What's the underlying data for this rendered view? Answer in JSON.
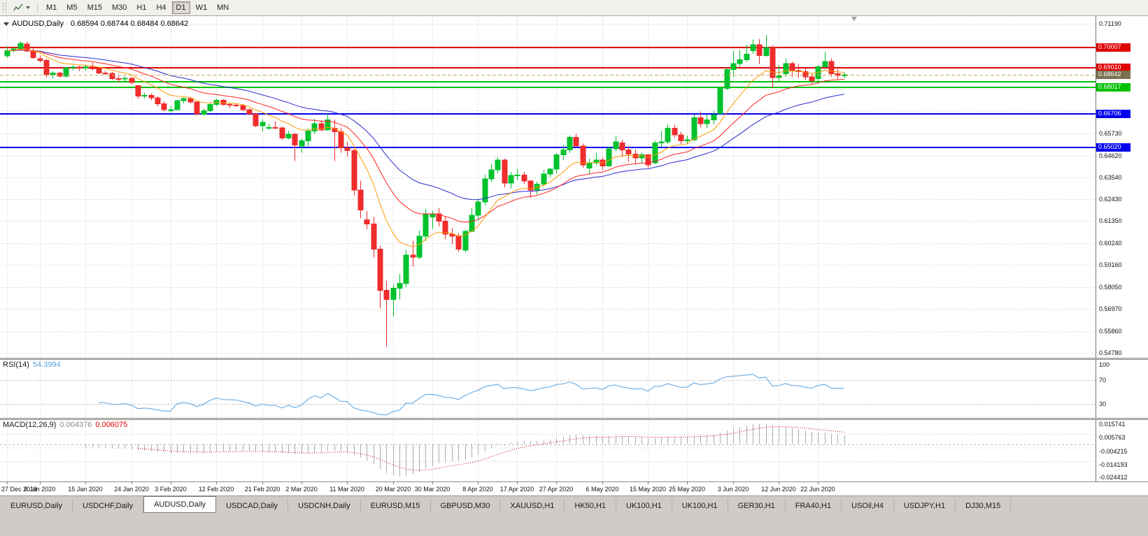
{
  "toolbar": {
    "periods": [
      "M1",
      "M5",
      "M15",
      "M30",
      "H1",
      "H4",
      "D1",
      "W1",
      "MN"
    ],
    "active_period": "D1"
  },
  "chart": {
    "type": "candlestick",
    "title": "AUDUSD,Daily",
    "ohlc_label": "0.68594 0.68744 0.68484 0.68642",
    "up_color": "#00c22c",
    "down_color": "#ef2c2c",
    "price_axis": {
      "max": 0.7119,
      "min": 0.5478,
      "grid_prices": [
        0.7119,
        0.7011,
        0.6903,
        0.6795,
        0.6687,
        0.6573,
        0.6462,
        0.6354,
        0.6243,
        0.6135,
        0.6024,
        0.5916,
        0.5805,
        0.5697,
        0.5586,
        0.5478
      ],
      "tick_labels": [
        {
          "price": 0.7119,
          "text": "0.71190"
        },
        {
          "price": 0.6573,
          "text": "0.65730"
        },
        {
          "price": 0.6462,
          "text": "0.64620"
        },
        {
          "price": 0.6354,
          "text": "0.63540"
        },
        {
          "price": 0.6243,
          "text": "0.62430"
        },
        {
          "price": 0.6135,
          "text": "0.61350"
        },
        {
          "price": 0.6024,
          "text": "0.60240"
        },
        {
          "price": 0.5916,
          "text": "0.59160"
        },
        {
          "price": 0.5805,
          "text": "0.58050"
        },
        {
          "price": 0.5697,
          "text": "0.56970"
        },
        {
          "price": 0.5586,
          "text": "0.55860"
        },
        {
          "price": 0.5478,
          "text": "0.54780"
        }
      ]
    },
    "hlines": [
      {
        "price": 0.70007,
        "text": "0.70007",
        "color": "#e00000",
        "badge": true
      },
      {
        "price": 0.6901,
        "text": "0.69010",
        "color": "#e00000",
        "badge": true
      },
      {
        "price": 0.683,
        "text": "0.68300",
        "color": "#00c000",
        "badge": false
      },
      {
        "price": 0.68017,
        "text": "0.68017",
        "color": "#00c000",
        "badge": true
      },
      {
        "price": 0.66706,
        "text": "0.66706",
        "color": "#0000ee",
        "badge": true
      },
      {
        "price": 0.6502,
        "text": "0.65020",
        "color": "#0000ee",
        "badge": true
      }
    ],
    "current_price": {
      "price": 0.68642,
      "text": "0.68642",
      "line_color": "#c9ab63",
      "badge_color": "#7a7050"
    },
    "ma": [
      {
        "name": "ma-fast",
        "period": 10,
        "color": "#ff9900"
      },
      {
        "name": "ma-mid",
        "period": 20,
        "color": "#ff2222"
      },
      {
        "name": "ma-slow",
        "period": 34,
        "color": "#2929cf"
      }
    ],
    "candles": [
      [
        0.6958,
        0.7005,
        0.695,
        0.6985
      ],
      [
        0.6985,
        0.7002,
        0.6976,
        0.6993
      ],
      [
        0.6993,
        0.7032,
        0.6988,
        0.7021
      ],
      [
        0.7018,
        0.7031,
        0.6978,
        0.6983
      ],
      [
        0.6983,
        0.7,
        0.6945,
        0.695
      ],
      [
        0.6945,
        0.6962,
        0.6925,
        0.6936
      ],
      [
        0.6936,
        0.6944,
        0.685,
        0.6865
      ],
      [
        0.6865,
        0.6882,
        0.6848,
        0.6873
      ],
      [
        0.6873,
        0.6879,
        0.6852,
        0.6858
      ],
      [
        0.6858,
        0.6905,
        0.685,
        0.69
      ],
      [
        0.69,
        0.6912,
        0.6888,
        0.6903
      ],
      [
        0.6903,
        0.691,
        0.6883,
        0.6897
      ],
      [
        0.6897,
        0.6913,
        0.6886,
        0.6905
      ],
      [
        0.6905,
        0.6925,
        0.6888,
        0.6895
      ],
      [
        0.6895,
        0.6901,
        0.6868,
        0.6874
      ],
      [
        0.6874,
        0.6884,
        0.6863,
        0.6872
      ],
      [
        0.6872,
        0.6878,
        0.6838,
        0.6845
      ],
      [
        0.6845,
        0.6858,
        0.6826,
        0.6843
      ],
      [
        0.6843,
        0.6856,
        0.6832,
        0.6848
      ],
      [
        0.6848,
        0.6853,
        0.6818,
        0.6827
      ],
      [
        0.681,
        0.6813,
        0.6745,
        0.6758
      ],
      [
        0.6758,
        0.6775,
        0.6748,
        0.6762
      ],
      [
        0.6762,
        0.677,
        0.6738,
        0.675
      ],
      [
        0.675,
        0.6757,
        0.6708,
        0.672
      ],
      [
        0.672,
        0.6733,
        0.6682,
        0.6691
      ],
      [
        0.6685,
        0.6708,
        0.6677,
        0.669
      ],
      [
        0.669,
        0.674,
        0.6688,
        0.6735
      ],
      [
        0.6735,
        0.6751,
        0.6722,
        0.6746
      ],
      [
        0.6746,
        0.6753,
        0.672,
        0.6728
      ],
      [
        0.6728,
        0.6732,
        0.6662,
        0.667
      ],
      [
        0.6668,
        0.6696,
        0.666,
        0.6686
      ],
      [
        0.6686,
        0.6723,
        0.668,
        0.6716
      ],
      [
        0.6716,
        0.6746,
        0.671,
        0.6738
      ],
      [
        0.6738,
        0.6743,
        0.6712,
        0.6716
      ],
      [
        0.6716,
        0.6725,
        0.67,
        0.6713
      ],
      [
        0.6713,
        0.6722,
        0.6704,
        0.6711
      ],
      [
        0.6711,
        0.6718,
        0.6684,
        0.669
      ],
      [
        0.669,
        0.6697,
        0.6662,
        0.667
      ],
      [
        0.667,
        0.6675,
        0.6604,
        0.6611
      ],
      [
        0.6611,
        0.6641,
        0.6585,
        0.6627
      ],
      [
        0.66,
        0.6621,
        0.6591,
        0.6601
      ],
      [
        0.6601,
        0.6633,
        0.6594,
        0.66
      ],
      [
        0.66,
        0.6606,
        0.6541,
        0.6549
      ],
      [
        0.6549,
        0.6586,
        0.6542,
        0.6568
      ],
      [
        0.6568,
        0.6573,
        0.6434,
        0.6515
      ],
      [
        0.651,
        0.6546,
        0.6476,
        0.6535
      ],
      [
        0.6535,
        0.6596,
        0.651,
        0.6585
      ],
      [
        0.6585,
        0.6646,
        0.657,
        0.6621
      ],
      [
        0.6621,
        0.6638,
        0.6584,
        0.659
      ],
      [
        0.659,
        0.6671,
        0.6586,
        0.664
      ],
      [
        0.6598,
        0.6641,
        0.6434,
        0.6581
      ],
      [
        0.6581,
        0.6601,
        0.6476,
        0.65
      ],
      [
        0.65,
        0.6529,
        0.6457,
        0.6487
      ],
      [
        0.6487,
        0.6496,
        0.6264,
        0.629
      ],
      [
        0.629,
        0.6336,
        0.6148,
        0.619
      ],
      [
        0.6142,
        0.6186,
        0.6094,
        0.612
      ],
      [
        0.612,
        0.6156,
        0.5954,
        0.5995
      ],
      [
        0.5995,
        0.6012,
        0.5702,
        0.579
      ],
      [
        0.579,
        0.5836,
        0.551,
        0.5745
      ],
      [
        0.5745,
        0.5822,
        0.566,
        0.58
      ],
      [
        0.58,
        0.5872,
        0.5744,
        0.5825
      ],
      [
        0.5825,
        0.5992,
        0.5806,
        0.5965
      ],
      [
        0.5965,
        0.6037,
        0.5909,
        0.5955
      ],
      [
        0.5955,
        0.6087,
        0.5944,
        0.606
      ],
      [
        0.606,
        0.6196,
        0.6036,
        0.617
      ],
      [
        0.6155,
        0.6187,
        0.6096,
        0.6172
      ],
      [
        0.6172,
        0.6201,
        0.6109,
        0.6135
      ],
      [
        0.6135,
        0.6156,
        0.6044,
        0.607
      ],
      [
        0.607,
        0.6101,
        0.6019,
        0.606
      ],
      [
        0.606,
        0.6076,
        0.5981,
        0.5995
      ],
      [
        0.599,
        0.6092,
        0.5979,
        0.6085
      ],
      [
        0.6085,
        0.6201,
        0.608,
        0.6165
      ],
      [
        0.6165,
        0.6246,
        0.6139,
        0.623
      ],
      [
        0.623,
        0.6366,
        0.6214,
        0.6345
      ],
      [
        0.6345,
        0.6421,
        0.6329,
        0.639
      ],
      [
        0.639,
        0.6456,
        0.6374,
        0.644
      ],
      [
        0.644,
        0.6446,
        0.6304,
        0.6325
      ],
      [
        0.6325,
        0.6381,
        0.6299,
        0.6363
      ],
      [
        0.6363,
        0.6396,
        0.6339,
        0.6365
      ],
      [
        0.6365,
        0.6381,
        0.6319,
        0.6335
      ],
      [
        0.6335,
        0.6341,
        0.6252,
        0.629
      ],
      [
        0.629,
        0.6331,
        0.6267,
        0.632
      ],
      [
        0.632,
        0.6391,
        0.6309,
        0.637
      ],
      [
        0.637,
        0.6401,
        0.6354,
        0.6395
      ],
      [
        0.6395,
        0.6473,
        0.6371,
        0.6465
      ],
      [
        0.6465,
        0.6516,
        0.6439,
        0.649
      ],
      [
        0.649,
        0.6561,
        0.6474,
        0.6552
      ],
      [
        0.6552,
        0.6571,
        0.6504,
        0.651
      ],
      [
        0.651,
        0.6521,
        0.6402,
        0.6415
      ],
      [
        0.64,
        0.6446,
        0.6371,
        0.6425
      ],
      [
        0.6425,
        0.6476,
        0.6414,
        0.644
      ],
      [
        0.644,
        0.6451,
        0.6389,
        0.641
      ],
      [
        0.641,
        0.6506,
        0.6404,
        0.6495
      ],
      [
        0.6495,
        0.6561,
        0.6484,
        0.653
      ],
      [
        0.6525,
        0.6541,
        0.6454,
        0.649
      ],
      [
        0.649,
        0.6511,
        0.6431,
        0.647
      ],
      [
        0.647,
        0.6491,
        0.6419,
        0.645
      ],
      [
        0.645,
        0.6476,
        0.6424,
        0.6465
      ],
      [
        0.6465,
        0.6469,
        0.6401,
        0.6415
      ],
      [
        0.6425,
        0.6536,
        0.6419,
        0.6525
      ],
      [
        0.6525,
        0.6586,
        0.6504,
        0.653
      ],
      [
        0.653,
        0.6618,
        0.6519,
        0.6598
      ],
      [
        0.6598,
        0.6616,
        0.6551,
        0.6565
      ],
      [
        0.6565,
        0.6581,
        0.6519,
        0.6535
      ],
      [
        0.6535,
        0.6561,
        0.6521,
        0.654
      ],
      [
        0.654,
        0.6666,
        0.6534,
        0.665
      ],
      [
        0.665,
        0.6681,
        0.6601,
        0.662
      ],
      [
        0.662,
        0.6666,
        0.6599,
        0.664
      ],
      [
        0.664,
        0.6686,
        0.6619,
        0.6665
      ],
      [
        0.6672,
        0.6806,
        0.6669,
        0.6797
      ],
      [
        0.6797,
        0.6899,
        0.6789,
        0.689
      ],
      [
        0.689,
        0.6984,
        0.6854,
        0.692
      ],
      [
        0.692,
        0.6989,
        0.6904,
        0.694
      ],
      [
        0.694,
        0.7014,
        0.6929,
        0.6968
      ],
      [
        0.6985,
        0.7041,
        0.6969,
        0.7015
      ],
      [
        0.7015,
        0.7043,
        0.6919,
        0.696
      ],
      [
        0.696,
        0.7064,
        0.6954,
        0.7
      ],
      [
        0.7,
        0.7011,
        0.6799,
        0.685
      ],
      [
        0.685,
        0.6911,
        0.6829,
        0.686
      ],
      [
        0.687,
        0.6946,
        0.6854,
        0.692
      ],
      [
        0.692,
        0.6931,
        0.6854,
        0.6885
      ],
      [
        0.6885,
        0.6921,
        0.6849,
        0.688
      ],
      [
        0.688,
        0.6896,
        0.6837,
        0.6855
      ],
      [
        0.6855,
        0.6871,
        0.6814,
        0.6835
      ],
      [
        0.6845,
        0.6911,
        0.6834,
        0.6905
      ],
      [
        0.6905,
        0.6978,
        0.6899,
        0.693
      ],
      [
        0.693,
        0.6946,
        0.6854,
        0.687
      ],
      [
        0.687,
        0.6893,
        0.6842,
        0.6862
      ],
      [
        0.68594,
        0.68744,
        0.68484,
        0.68642
      ]
    ],
    "date_ticks": [
      {
        "i": 0,
        "text": "27 Dec 2019"
      },
      {
        "i": 5,
        "text": "6 Jan 2020"
      },
      {
        "i": 12,
        "text": "15 Jan 2020"
      },
      {
        "i": 19,
        "text": "24 Jan 2020"
      },
      {
        "i": 25,
        "text": "3 Feb 2020"
      },
      {
        "i": 32,
        "text": "12 Feb 2020"
      },
      {
        "i": 39,
        "text": "21 Feb 2020"
      },
      {
        "i": 45,
        "text": "2 Mar 2020"
      },
      {
        "i": 52,
        "text": "11 Mar 2020"
      },
      {
        "i": 59,
        "text": "20 Mar 2020"
      },
      {
        "i": 65,
        "text": "30 Mar 2020"
      },
      {
        "i": 72,
        "text": "8 Apr 2020"
      },
      {
        "i": 78,
        "text": "17 Apr 2020"
      },
      {
        "i": 84,
        "text": "27 Apr 2020"
      },
      {
        "i": 91,
        "text": "6 May 2020"
      },
      {
        "i": 98,
        "text": "15 May 2020"
      },
      {
        "i": 104,
        "text": "25 May 2020"
      },
      {
        "i": 111,
        "text": "3 Jun 2020"
      },
      {
        "i": 118,
        "text": "12 Jun 2020"
      },
      {
        "i": 124,
        "text": "22 Jun 2020"
      }
    ]
  },
  "rsi": {
    "name": "RSI(14)",
    "value": "54.3994",
    "period": 14,
    "color": "#55a1e0",
    "levels": [
      70,
      30
    ],
    "axis_labels": [
      {
        "v": 100,
        "text": "100"
      },
      {
        "v": 70,
        "text": "70"
      },
      {
        "v": 30,
        "text": "30"
      }
    ]
  },
  "macd": {
    "name": "MACD(12,26,9)",
    "value_main": "0.004376",
    "value_signal": "0.006075",
    "fast": 12,
    "slow": 26,
    "signal": 9,
    "hist_color": "#ababab",
    "signal_color": "#e00000",
    "axis_labels": [
      "0.015741",
      "0.005763",
      "-0.004215",
      "-0.014193",
      "-0.024412"
    ]
  },
  "tabs": {
    "items": [
      "EURUSD,Daily",
      "USDCHF,Daily",
      "AUDUSD,Daily",
      "USDCAD,Daily",
      "USDCNH,Daily",
      "EURUSD,M15",
      "GBPUSD,M30",
      "XAUUSD,H1",
      "HK50,H1",
      "UK100,H1",
      "UK100,H1",
      "GER30,H1",
      "FRA40,H1",
      "USOil,H4",
      "USDJPY,H1",
      "DJ30,M15"
    ],
    "active_index": 2
  }
}
